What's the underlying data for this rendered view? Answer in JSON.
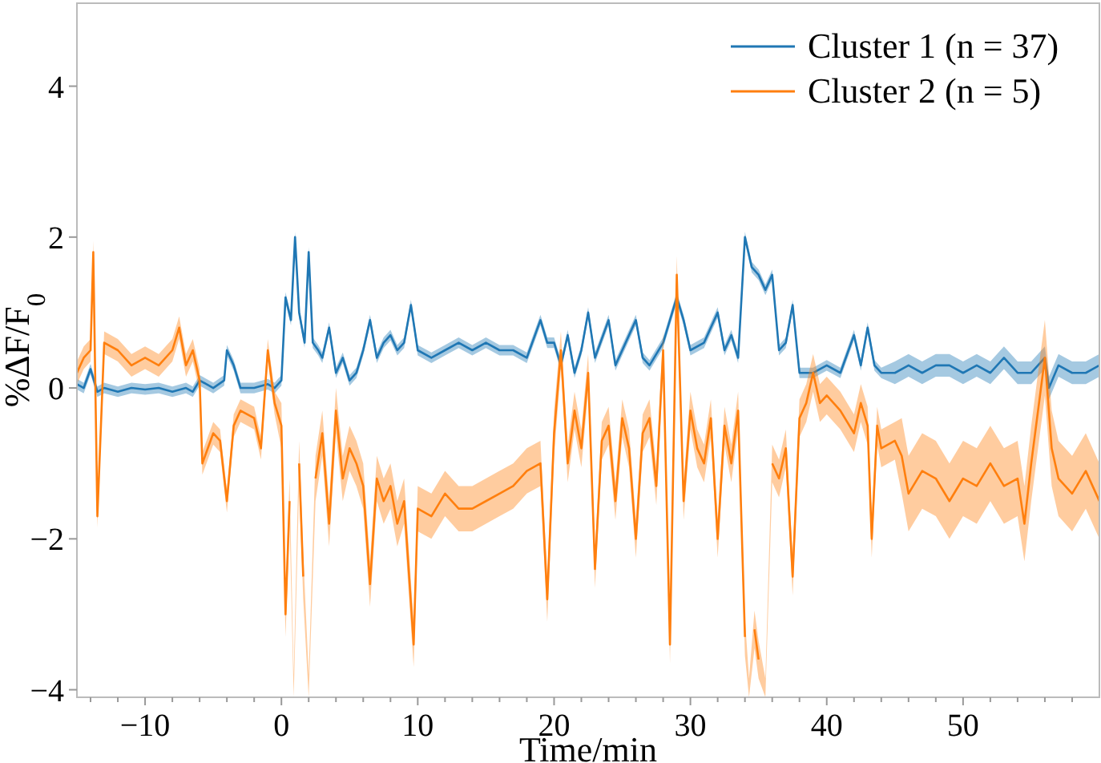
{
  "chart_data": {
    "type": "line",
    "xlabel": "Time/min",
    "ylabel": "%ΔF/F$_{0}$",
    "xlim": [
      -15,
      60
    ],
    "ylim": [
      -4.1,
      5.1
    ],
    "xticks": [
      {
        "value": -14,
        "label": null
      },
      {
        "value": -12,
        "label": null
      },
      -10,
      {
        "value": -8,
        "label": null
      },
      {
        "value": -6,
        "label": null
      },
      {
        "value": -4,
        "label": null
      },
      {
        "value": -2,
        "label": null
      },
      0,
      {
        "value": 2,
        "label": null
      },
      {
        "value": 4,
        "label": null
      },
      {
        "value": 6,
        "label": null
      },
      {
        "value": 8,
        "label": null
      },
      10,
      {
        "value": 12,
        "label": null
      },
      {
        "value": 14,
        "label": null
      },
      {
        "value": 16,
        "label": null
      },
      {
        "value": 18,
        "label": null
      },
      20,
      {
        "value": 22,
        "label": null
      },
      {
        "value": 24,
        "label": null
      },
      {
        "value": 26,
        "label": null
      },
      {
        "value": 28,
        "label": null
      },
      30,
      {
        "value": 32,
        "label": null
      },
      {
        "value": 34,
        "label": null
      },
      {
        "value": 36,
        "label": null
      },
      {
        "value": 38,
        "label": null
      },
      40,
      {
        "value": 42,
        "label": null
      },
      {
        "value": 44,
        "label": null
      },
      {
        "value": 46,
        "label": null
      },
      {
        "value": 48,
        "label": null
      },
      50,
      {
        "value": 52,
        "label": null
      },
      {
        "value": 54,
        "label": null
      },
      {
        "value": 56,
        "label": null
      },
      {
        "value": 58,
        "label": null
      }
    ],
    "yticks": [
      -4,
      -2,
      0,
      2,
      4
    ],
    "grid": false,
    "legend": "top right",
    "marker": "none",
    "line_style": "solid",
    "series": [
      {
        "name": "Cluster 1 (n = 37)",
        "color": "#1f77b4",
        "x": [
          -15,
          -14.5,
          -14,
          -13.5,
          -13,
          -12,
          -11,
          -10,
          -9,
          -8,
          -7,
          -6.5,
          -6,
          -5,
          -4.2,
          -4,
          -3.5,
          -3,
          -2,
          -1,
          -0.5,
          0,
          0.3,
          0.7,
          1,
          1.3,
          1.7,
          2,
          2.3,
          2.7,
          3,
          3.5,
          4,
          4.5,
          5,
          5.5,
          6,
          6.5,
          7,
          7.5,
          8,
          8.5,
          9,
          9.5,
          10,
          11,
          12,
          13,
          14,
          15,
          16,
          17,
          18,
          19,
          19.5,
          20,
          20.5,
          21,
          21.5,
          22,
          22.5,
          23,
          24,
          24.5,
          25,
          26,
          26.5,
          27,
          28,
          28.5,
          29,
          29.5,
          30,
          31,
          32,
          32.5,
          33,
          33.5,
          34,
          34.5,
          35,
          35.5,
          36,
          36.5,
          37,
          37.5,
          38,
          39,
          40,
          41,
          42,
          42.5,
          43,
          43.5,
          44,
          45,
          46,
          47,
          48,
          49,
          50,
          51,
          52,
          53,
          54,
          55,
          56,
          56.3,
          57,
          58,
          59,
          60
        ],
        "values": [
          0.05,
          0,
          0.25,
          -0.05,
          0,
          -0.05,
          0,
          -0.02,
          0,
          -0.05,
          0,
          -0.05,
          0.1,
          0,
          0.1,
          0.5,
          0.3,
          0,
          0,
          0.05,
          0,
          0.1,
          1.2,
          0.9,
          2,
          1,
          0.6,
          1.8,
          0.6,
          0.5,
          0.4,
          0.8,
          0.2,
          0.4,
          0.1,
          0.2,
          0.5,
          0.9,
          0.4,
          0.6,
          0.7,
          0.5,
          0.6,
          1.1,
          0.5,
          0.4,
          0.5,
          0.6,
          0.5,
          0.6,
          0.5,
          0.5,
          0.4,
          0.9,
          0.6,
          0.6,
          0.3,
          0.7,
          0.2,
          0.5,
          1,
          0.4,
          0.9,
          0.3,
          0.5,
          0.9,
          0.4,
          0.3,
          0.6,
          0.9,
          1.2,
          0.9,
          0.5,
          0.6,
          1,
          0.5,
          0.7,
          0.4,
          2,
          1.6,
          1.5,
          1.3,
          1.5,
          0.5,
          0.6,
          1.1,
          0.2,
          0.2,
          0.3,
          0.2,
          0.7,
          0.3,
          0.8,
          0.3,
          0.2,
          0.2,
          0.3,
          0.2,
          0.3,
          0.3,
          0.2,
          0.3,
          0.2,
          0.4,
          0.2,
          0.2,
          0.4,
          0,
          0.3,
          0.2,
          0.2,
          0.3
        ],
        "lower": [
          -0.02,
          -0.07,
          0.18,
          -0.12,
          -0.07,
          -0.12,
          -0.07,
          -0.09,
          -0.07,
          -0.12,
          -0.07,
          -0.12,
          0.03,
          -0.07,
          0.03,
          0.43,
          0.23,
          -0.07,
          -0.07,
          -0.02,
          -0.07,
          0.03,
          1.13,
          0.83,
          1.93,
          0.93,
          0.53,
          1.73,
          0.53,
          0.43,
          0.33,
          0.73,
          0.13,
          0.33,
          0.03,
          0.13,
          0.43,
          0.83,
          0.33,
          0.53,
          0.63,
          0.43,
          0.53,
          1.03,
          0.43,
          0.33,
          0.43,
          0.53,
          0.43,
          0.53,
          0.43,
          0.43,
          0.33,
          0.83,
          0.53,
          0.53,
          0.23,
          0.63,
          0.13,
          0.43,
          0.93,
          0.33,
          0.83,
          0.23,
          0.43,
          0.83,
          0.33,
          0.23,
          0.53,
          0.83,
          1.13,
          0.83,
          0.43,
          0.53,
          0.93,
          0.43,
          0.63,
          0.33,
          1.93,
          1.53,
          1.43,
          1.23,
          1.43,
          0.43,
          0.53,
          1.03,
          0.13,
          0.13,
          0.23,
          0.13,
          0.63,
          0.23,
          0.73,
          0.23,
          0.13,
          0.05,
          0.15,
          0.05,
          0.15,
          0.15,
          0.05,
          0.15,
          0.05,
          0.25,
          0.05,
          0.05,
          0.25,
          -0.15,
          0.15,
          0.05,
          0.05,
          0.15
        ],
        "upper": [
          0.12,
          0.07,
          0.32,
          0.02,
          0.07,
          0.02,
          0.07,
          0.05,
          0.07,
          0.02,
          0.07,
          0.02,
          0.17,
          0.07,
          0.17,
          0.57,
          0.37,
          0.07,
          0.07,
          0.12,
          0.07,
          0.17,
          1.27,
          0.97,
          2.07,
          1.07,
          0.67,
          1.87,
          0.67,
          0.57,
          0.47,
          0.87,
          0.27,
          0.47,
          0.17,
          0.27,
          0.57,
          0.97,
          0.47,
          0.67,
          0.77,
          0.57,
          0.67,
          1.17,
          0.57,
          0.47,
          0.57,
          0.67,
          0.57,
          0.67,
          0.57,
          0.57,
          0.47,
          0.97,
          0.67,
          0.67,
          0.37,
          0.77,
          0.27,
          0.57,
          1.07,
          0.47,
          0.97,
          0.37,
          0.57,
          0.97,
          0.47,
          0.37,
          0.67,
          0.97,
          1.27,
          0.97,
          0.57,
          0.67,
          1.07,
          0.57,
          0.77,
          0.47,
          2.07,
          1.67,
          1.57,
          1.37,
          1.57,
          0.57,
          0.67,
          1.17,
          0.27,
          0.27,
          0.37,
          0.27,
          0.77,
          0.37,
          0.87,
          0.37,
          0.27,
          0.35,
          0.45,
          0.35,
          0.45,
          0.45,
          0.35,
          0.45,
          0.35,
          0.55,
          0.35,
          0.35,
          0.55,
          0.15,
          0.45,
          0.35,
          0.35,
          0.45
        ]
      },
      {
        "name": "Cluster 2 (n = 5)",
        "color": "#ff7f0e",
        "x": [
          -15,
          -14.5,
          -14,
          -13.8,
          -13.5,
          -13,
          -12,
          -11,
          -10,
          -9,
          -8,
          -7.5,
          -7,
          -6.5,
          -6,
          -5.8,
          -5,
          -4.5,
          -4,
          -3.5,
          -3,
          -2,
          -1.5,
          -1,
          -0.5,
          0,
          0.3,
          0.6,
          0.9,
          1.3,
          1.6,
          2,
          2.5,
          3,
          3.5,
          4,
          4.5,
          5,
          5.5,
          6,
          6.5,
          7,
          7.5,
          8,
          8.5,
          9,
          9.7,
          10,
          11,
          12,
          13,
          14,
          15,
          16,
          17,
          18,
          19,
          19.5,
          20,
          20.5,
          21,
          21.5,
          22,
          22.5,
          23,
          23.5,
          24,
          24.5,
          25,
          25.5,
          26,
          26.5,
          27,
          27.5,
          28,
          28.5,
          29,
          29.5,
          30,
          30.5,
          31,
          31.5,
          32,
          32.5,
          33,
          33.5,
          34,
          34.3,
          34.7,
          35,
          35.5,
          36,
          36.5,
          37,
          37.5,
          38,
          38.5,
          39,
          39.5,
          40,
          41,
          42,
          42.5,
          43,
          43.3,
          43.7,
          44,
          45,
          45.5,
          46,
          47,
          48,
          49,
          50,
          51,
          52,
          53,
          54,
          54.5,
          55,
          56,
          56.5,
          57,
          58,
          59,
          60
        ],
        "values": [
          0.2,
          0.4,
          0.5,
          1.8,
          -1.7,
          0.6,
          0.5,
          0.3,
          0.4,
          0.3,
          0.5,
          0.8,
          0.3,
          0.5,
          0.1,
          -1,
          -0.6,
          -0.7,
          -1.5,
          -0.5,
          -0.3,
          -0.4,
          -0.8,
          0.5,
          -0.2,
          -0.5,
          -3,
          -1.5,
          null,
          -1,
          -2.5,
          null,
          -1.2,
          -0.6,
          -1.8,
          -0.3,
          -1.2,
          -0.8,
          -1,
          -1.3,
          -2.6,
          -1.2,
          -1.5,
          -1.3,
          -1.8,
          -1.5,
          -3.4,
          -1.6,
          -1.7,
          -1.4,
          -1.6,
          -1.6,
          -1.5,
          -1.4,
          -1.3,
          -1.1,
          -1,
          -2.8,
          -0.6,
          0.5,
          -1,
          -0.3,
          -0.8,
          0.2,
          -2.4,
          -0.7,
          -0.5,
          -1.5,
          -0.4,
          -0.8,
          -2,
          -0.6,
          -0.4,
          -1.3,
          0.5,
          -3.4,
          1.5,
          -1.5,
          -0.3,
          -0.8,
          -1,
          -0.4,
          -2,
          -0.5,
          -1,
          -0.3,
          -3.3,
          null,
          -3.2,
          -3.6,
          null,
          -1,
          -1.2,
          -0.8,
          -2.5,
          -0.4,
          -0.2,
          0.2,
          -0.2,
          -0.1,
          -0.3,
          -0.6,
          -0.2,
          -0.5,
          -2,
          -0.5,
          -0.8,
          -0.7,
          -0.9,
          -1.4,
          -1.1,
          -1.2,
          -1.5,
          -1.2,
          -1.3,
          -1,
          -1.3,
          -1.2,
          -1.8,
          -1,
          0.4,
          -0.8,
          -1.2,
          -1.4,
          -1.1,
          -1.5
        ],
        "lower": [
          0.05,
          0.25,
          0.35,
          1.65,
          -1.85,
          0.45,
          0.35,
          0.15,
          0.25,
          0.15,
          0.35,
          0.65,
          0.15,
          0.35,
          -0.05,
          -1.15,
          -0.75,
          -0.85,
          -1.65,
          -0.65,
          -0.45,
          -0.55,
          -0.95,
          0.35,
          -0.35,
          -0.8,
          -3.3,
          -1.8,
          -4.1,
          -1.3,
          -2.8,
          -4.1,
          -1.5,
          -0.9,
          -2.1,
          -0.6,
          -1.5,
          -1.1,
          -1.3,
          -1.6,
          -2.9,
          -1.5,
          -1.8,
          -1.6,
          -2.1,
          -1.8,
          -3.7,
          -1.9,
          -2,
          -1.7,
          -1.9,
          -1.9,
          -1.8,
          -1.7,
          -1.6,
          -1.4,
          -1.3,
          -3.1,
          -0.9,
          0.25,
          -1.25,
          -0.55,
          -1.05,
          -0.05,
          -2.65,
          -0.95,
          -0.75,
          -1.75,
          -0.65,
          -1.05,
          -2.25,
          -0.85,
          -0.65,
          -1.55,
          0.25,
          -3.65,
          1.25,
          -1.75,
          -0.55,
          -1.05,
          -1.25,
          -0.65,
          -2.25,
          -0.75,
          -1.25,
          -0.55,
          -3.55,
          -4.1,
          -3.45,
          -3.85,
          -4.1,
          -1.25,
          -1.45,
          -1.05,
          -2.75,
          -0.65,
          -0.45,
          -0.05,
          -0.45,
          -0.35,
          -0.55,
          -0.85,
          -0.45,
          -0.75,
          -2.25,
          -0.75,
          -1.05,
          -0.95,
          -1.4,
          -1.9,
          -1.6,
          -1.7,
          -2,
          -1.7,
          -1.8,
          -1.5,
          -1.8,
          -1.7,
          -2.3,
          -1.5,
          -0.1,
          -1.3,
          -1.7,
          -1.9,
          -1.6,
          -2
        ],
        "upper": [
          0.35,
          0.55,
          0.65,
          1.95,
          -1.55,
          0.75,
          0.65,
          0.45,
          0.55,
          0.45,
          0.65,
          0.95,
          0.45,
          0.65,
          0.25,
          -0.85,
          -0.45,
          -0.55,
          -1.35,
          -0.35,
          -0.15,
          -0.25,
          -0.65,
          0.65,
          -0.05,
          -0.2,
          -2.7,
          -1.2,
          -3.8,
          -0.7,
          -2.2,
          -3.8,
          -0.9,
          -0.3,
          -1.5,
          0,
          -0.9,
          -0.5,
          -0.7,
          -1,
          -2.3,
          -0.9,
          -1.2,
          -1,
          -1.5,
          -1.2,
          -3.1,
          -1.3,
          -1.4,
          -1.1,
          -1.3,
          -1.3,
          -1.2,
          -1.1,
          -1,
          -0.8,
          -0.7,
          -2.5,
          -0.3,
          0.75,
          -0.75,
          -0.05,
          -0.55,
          0.45,
          -2.15,
          -0.45,
          -0.25,
          -1.25,
          -0.15,
          -0.55,
          -1.75,
          -0.35,
          -0.15,
          -1.05,
          0.75,
          -3.15,
          1.75,
          -1.25,
          -0.05,
          -0.55,
          -0.75,
          -0.15,
          -1.75,
          -0.25,
          -0.75,
          -0.05,
          -3.05,
          -3.85,
          -2.95,
          -3.35,
          -3.85,
          -0.75,
          -0.95,
          -0.55,
          -2.25,
          -0.15,
          0.05,
          0.45,
          0.05,
          0.15,
          -0.05,
          -0.35,
          0.05,
          -0.25,
          -1.75,
          -0.25,
          -0.55,
          -0.45,
          -0.4,
          -0.9,
          -0.6,
          -0.7,
          -1,
          -0.7,
          -0.8,
          -0.5,
          -0.8,
          -0.7,
          -1.3,
          -0.5,
          0.9,
          -0.3,
          -0.7,
          -0.9,
          -0.6,
          -1
        ]
      }
    ]
  }
}
